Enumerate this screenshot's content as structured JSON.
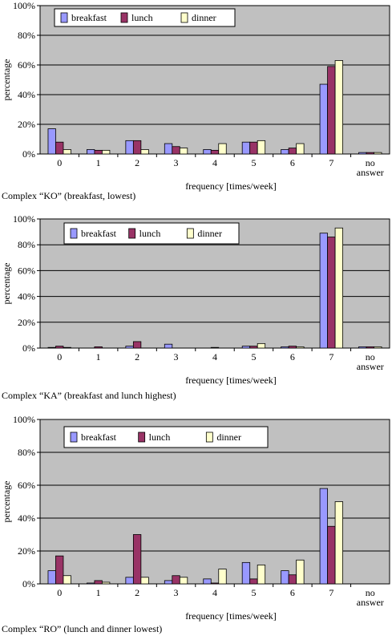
{
  "colors": {
    "breakfast": "#9999ff",
    "lunch": "#993366",
    "dinner": "#ffffcc",
    "plot_bg": "#c0c0c0"
  },
  "chart_data": [
    {
      "type": "bar",
      "title": "",
      "caption": "Complex “KO” (breakfast, lowest)",
      "xlabel": "frequency [times/week]",
      "ylabel": "percentage",
      "categories": [
        "0",
        "1",
        "2",
        "3",
        "4",
        "5",
        "6",
        "7",
        "no answer"
      ],
      "ylim": [
        0,
        100
      ],
      "yticks": [
        "0%",
        "20%",
        "40%",
        "60%",
        "80%",
        "100%"
      ],
      "legend_position": "top-left",
      "series": [
        {
          "name": "breakfast",
          "values": [
            17,
            3,
            9,
            7,
            3,
            8,
            3,
            47,
            1
          ]
        },
        {
          "name": "lunch",
          "values": [
            8,
            2.5,
            9,
            5,
            2.5,
            8,
            4,
            59,
            1
          ]
        },
        {
          "name": "dinner",
          "values": [
            3,
            2.5,
            3,
            4,
            7,
            9,
            7,
            63,
            1
          ]
        }
      ]
    },
    {
      "type": "bar",
      "title": "",
      "caption": "Complex “KA” (breakfast and lunch highest)",
      "xlabel": "frequency [times/week]",
      "ylabel": "percentage",
      "categories": [
        "0",
        "1",
        "2",
        "3",
        "4",
        "5",
        "6",
        "7",
        "no answer"
      ],
      "ylim": [
        0,
        100
      ],
      "yticks": [
        "0%",
        "20%",
        "40%",
        "60%",
        "80%",
        "100%"
      ],
      "legend_position": "top-left",
      "series": [
        {
          "name": "breakfast",
          "values": [
            0.5,
            0,
            1.5,
            3,
            0,
            1.5,
            1,
            89,
            1
          ]
        },
        {
          "name": "lunch",
          "values": [
            1.5,
            1,
            5,
            0,
            0.5,
            1.5,
            1.5,
            86,
            1
          ]
        },
        {
          "name": "dinner",
          "values": [
            0.5,
            0,
            0,
            0,
            0,
            3.5,
            1,
            93,
            1
          ]
        }
      ]
    },
    {
      "type": "bar",
      "title": "",
      "caption": "Complex “RO” (lunch and dinner lowest)",
      "xlabel": "frequency [times/week]",
      "ylabel": "percentage",
      "categories": [
        "0",
        "1",
        "2",
        "3",
        "4",
        "5",
        "6",
        "7",
        "no answer"
      ],
      "ylim": [
        0,
        100
      ],
      "yticks": [
        "0%",
        "20%",
        "40%",
        "60%",
        "80%",
        "100%"
      ],
      "legend_position": "top-left",
      "series": [
        {
          "name": "breakfast",
          "values": [
            8,
            0.5,
            4,
            2,
            3,
            13,
            8,
            58,
            0
          ]
        },
        {
          "name": "lunch",
          "values": [
            17,
            2,
            30,
            5,
            0.5,
            3,
            5.5,
            35,
            0
          ]
        },
        {
          "name": "dinner",
          "values": [
            5,
            1,
            4,
            4,
            9,
            11.5,
            14.5,
            50,
            0
          ]
        }
      ]
    }
  ]
}
